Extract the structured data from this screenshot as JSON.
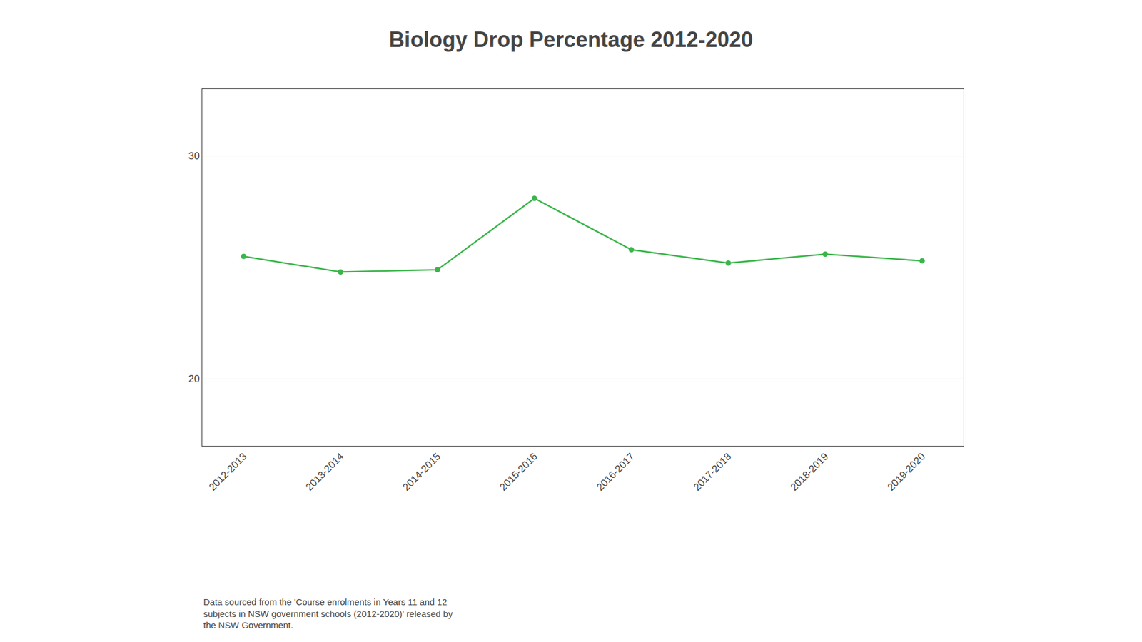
{
  "chart_data": {
    "type": "line",
    "title": "Biology Drop Percentage 2012-2020",
    "categories": [
      "2012-2013",
      "2013-2014",
      "2014-2015",
      "2015-2016",
      "2016-2017",
      "2017-2018",
      "2018-2019",
      "2019-2020"
    ],
    "values": [
      25.5,
      24.8,
      24.9,
      28.1,
      25.8,
      25.2,
      25.6,
      25.3
    ],
    "color": "#3ab54a",
    "marker": "circle",
    "ylim": [
      17,
      33
    ],
    "yticks": [
      20,
      30
    ],
    "grid": true,
    "annotation": "Data sourced from the 'Course enrolments in Years 11 and 12\nsubjects in NSW government schools (2012-2020)' released by\nthe NSW Government."
  }
}
